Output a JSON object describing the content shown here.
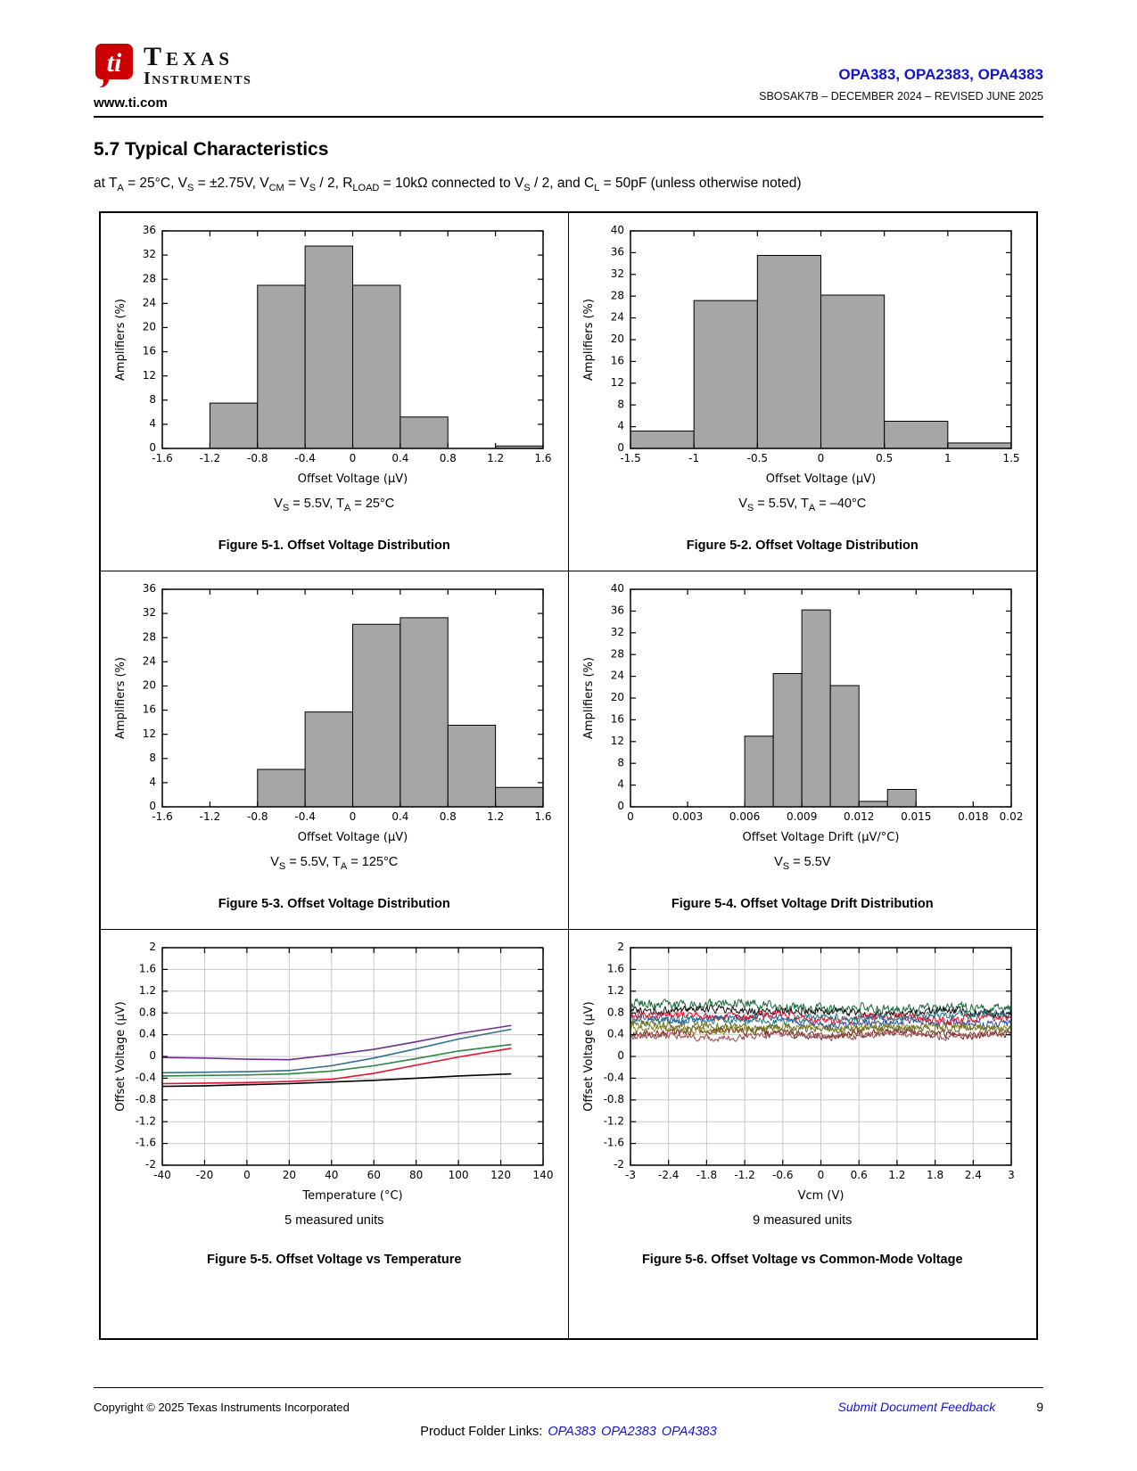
{
  "theme": {
    "brand_red": "#cc0000",
    "link_blue": "#1414cc",
    "bar_fill": "#a6a6a6",
    "grid_gray": "#c9c9c9"
  },
  "header": {
    "website": "www.ti.com",
    "logo_line1": "Texas",
    "logo_line2": "Instruments",
    "part_numbers": "OPA383, OPA2383, OPA4383",
    "doc_revision": "SBOSAK7B – DECEMBER 2024 – REVISED JUNE 2025"
  },
  "section": {
    "title": "5.7 Typical Characteristics",
    "conditions_html": "at T<sub>A</sub> = 25°C, V<sub>S</sub> = ±2.75V, V<sub>CM</sub> = V<sub>S</sub> / 2, R<sub>LOAD</sub> = 10kΩ connected to V<sub>S</sub> / 2, and C<sub>L</sub> = 50pF (unless otherwise noted)",
    "measured_units_fig5": "5 measured units",
    "measured_units_fig6": "9 measured units"
  },
  "chart_data": [
    {
      "name": "figure-5-1",
      "type": "bar",
      "title": "Figure 5-1. Offset Voltage Distribution",
      "condition_html": "V<sub>S</sub> = 5.5V, T<sub>A</sub> = 25°C",
      "xlabel": "Offset Voltage (μV)",
      "ylabel": "Amplifiers (%)",
      "xlim": [
        -1.6,
        1.6
      ],
      "ylim": [
        0,
        36
      ],
      "xticks": [
        -1.6,
        -1.2,
        -0.8,
        -0.4,
        0,
        0.4,
        0.8,
        1.2,
        1.6
      ],
      "yticks": [
        0,
        4,
        8,
        12,
        16,
        20,
        24,
        28,
        32,
        36
      ],
      "grid": false,
      "bars": [
        [
          -1.2,
          -0.8,
          7.5
        ],
        [
          -0.8,
          -0.4,
          27
        ],
        [
          -0.4,
          0,
          33.5
        ],
        [
          0,
          0.4,
          27
        ],
        [
          0.4,
          0.8,
          5.2
        ],
        [
          1.2,
          1.6,
          0.4
        ]
      ]
    },
    {
      "name": "figure-5-2",
      "type": "bar",
      "title": "Figure 5-2. Offset Voltage Distribution",
      "condition_html": "V<sub>S</sub> = 5.5V, T<sub>A</sub> = –40°C",
      "xlabel": "Offset Voltage (μV)",
      "ylabel": "Amplifiers (%)",
      "xlim": [
        -1.5,
        1.5
      ],
      "ylim": [
        0,
        40
      ],
      "xticks": [
        -1.5,
        -1,
        -0.5,
        0,
        0.5,
        1,
        1.5
      ],
      "yticks": [
        0,
        4,
        8,
        12,
        16,
        20,
        24,
        28,
        32,
        36,
        40
      ],
      "grid": false,
      "bars": [
        [
          -1.5,
          -1,
          3.2
        ],
        [
          -1,
          -0.5,
          27.2
        ],
        [
          -0.5,
          0,
          35.5
        ],
        [
          0,
          0.5,
          28.2
        ],
        [
          0.5,
          1,
          5
        ],
        [
          1,
          1.5,
          1
        ]
      ]
    },
    {
      "name": "figure-5-3",
      "type": "bar",
      "title": "Figure 5-3. Offset Voltage Distribution",
      "condition_html": "V<sub>S</sub> = 5.5V, T<sub>A</sub> = 125°C",
      "xlabel": "Offset Voltage (μV)",
      "ylabel": "Amplifiers (%)",
      "xlim": [
        -1.6,
        1.6
      ],
      "ylim": [
        0,
        36
      ],
      "xticks": [
        -1.6,
        -1.2,
        -0.8,
        -0.4,
        0,
        0.4,
        0.8,
        1.2,
        1.6
      ],
      "yticks": [
        0,
        4,
        8,
        12,
        16,
        20,
        24,
        28,
        32,
        36
      ],
      "grid": false,
      "bars": [
        [
          -0.8,
          -0.4,
          6.2
        ],
        [
          -0.4,
          0,
          15.7
        ],
        [
          0,
          0.4,
          30.2
        ],
        [
          0.4,
          0.8,
          31.3
        ],
        [
          0.8,
          1.2,
          13.5
        ],
        [
          1.2,
          1.6,
          3.2
        ]
      ]
    },
    {
      "name": "figure-5-4",
      "type": "bar",
      "title": "Figure 5-4. Offset Voltage Drift Distribution",
      "condition_html": "V<sub>S</sub> = 5.5V",
      "xlabel": "Offset Voltage Drift (μV/°C)",
      "ylabel": "Amplifiers (%)",
      "xlim": [
        0,
        0.02
      ],
      "ylim": [
        0,
        40
      ],
      "xticks": [
        0,
        0.003,
        0.006,
        0.009,
        0.012,
        0.015,
        0.018,
        0.02
      ],
      "yticks": [
        0,
        4,
        8,
        12,
        16,
        20,
        24,
        28,
        32,
        36,
        40
      ],
      "grid": false,
      "bars": [
        [
          0.006,
          0.0075,
          13
        ],
        [
          0.0075,
          0.009,
          24.5
        ],
        [
          0.009,
          0.0105,
          36.2
        ],
        [
          0.0105,
          0.012,
          22.3
        ],
        [
          0.012,
          0.0135,
          1
        ],
        [
          0.0135,
          0.015,
          3.2
        ]
      ]
    },
    {
      "name": "figure-5-5",
      "type": "line",
      "title": "Figure 5-5. Offset Voltage vs Temperature",
      "condition_html": "5 measured units",
      "xlabel": "Temperature (°C)",
      "ylabel": "Offset Voltage (μV)",
      "xlim": [
        -40,
        140
      ],
      "ylim": [
        -2,
        2
      ],
      "xticks": [
        -40,
        -20,
        0,
        20,
        40,
        60,
        80,
        100,
        120,
        140
      ],
      "yticks": [
        -2,
        -1.6,
        -1.2,
        -0.8,
        -0.4,
        0,
        0.4,
        0.8,
        1.2,
        1.6,
        2
      ],
      "grid": true,
      "x": [
        -40,
        -20,
        0,
        20,
        40,
        60,
        80,
        100,
        125
      ],
      "series": [
        {
          "name": "unit-1",
          "color": "#70308f",
          "values": [
            -0.02,
            -0.03,
            -0.05,
            -0.06,
            0.03,
            0.13,
            0.27,
            0.42,
            0.57
          ]
        },
        {
          "name": "unit-2",
          "color": "#31708f",
          "values": [
            -0.3,
            -0.29,
            -0.28,
            -0.26,
            -0.17,
            -0.03,
            0.14,
            0.32,
            0.5
          ]
        },
        {
          "name": "unit-3",
          "color": "#2e8540",
          "values": [
            -0.36,
            -0.35,
            -0.34,
            -0.32,
            -0.27,
            -0.17,
            -0.04,
            0.1,
            0.22
          ]
        },
        {
          "name": "unit-4",
          "color": "#e8112d",
          "values": [
            -0.5,
            -0.49,
            -0.48,
            -0.46,
            -0.42,
            -0.31,
            -0.16,
            -0.01,
            0.15
          ]
        },
        {
          "name": "unit-5",
          "color": "#000000",
          "values": [
            -0.55,
            -0.54,
            -0.52,
            -0.5,
            -0.47,
            -0.44,
            -0.4,
            -0.36,
            -0.32
          ]
        }
      ]
    },
    {
      "name": "figure-5-6",
      "type": "noisy",
      "title": "Figure 5-6. Offset Voltage vs Common-Mode Voltage",
      "condition_html": "9 measured units",
      "xlabel": "Vcm (V)",
      "ylabel": "Offset Voltage (μV)",
      "xlim": [
        -3,
        3
      ],
      "ylim": [
        -2,
        2
      ],
      "xticks": [
        -3,
        -2.4,
        -1.8,
        -1.2,
        -0.6,
        0,
        0.6,
        1.2,
        1.8,
        2.4,
        3
      ],
      "yticks": [
        -2,
        -1.6,
        -1.2,
        -0.8,
        -0.4,
        0,
        0.4,
        0.8,
        1.2,
        1.6,
        2
      ],
      "grid": true,
      "points": 460,
      "series": [
        {
          "name": "unit-1",
          "color": "#1b6b3a",
          "left": 0.95,
          "right": 0.88,
          "amp": 0.14
        },
        {
          "name": "unit-2",
          "color": "#7b1f1f",
          "left": 0.45,
          "right": 0.42,
          "amp": 0.11
        },
        {
          "name": "unit-3",
          "color": "#8a8a2a",
          "left": 0.5,
          "right": 0.55,
          "amp": 0.11
        },
        {
          "name": "unit-4",
          "color": "#2b4fa0",
          "left": 0.7,
          "right": 0.62,
          "amp": 0.11
        },
        {
          "name": "unit-5",
          "color": "#101010",
          "left": 0.85,
          "right": 0.8,
          "amp": 0.11
        },
        {
          "name": "unit-6",
          "color": "#e8112d",
          "left": 0.74,
          "right": 0.7,
          "amp": 0.12
        },
        {
          "name": "unit-7",
          "color": "#1a7a8a",
          "left": 0.64,
          "right": 0.74,
          "amp": 0.11
        },
        {
          "name": "unit-8",
          "color": "#9a4a4a",
          "left": 0.36,
          "right": 0.4,
          "amp": 0.1
        },
        {
          "name": "unit-9",
          "color": "#6e6e20",
          "left": 0.56,
          "right": 0.5,
          "amp": 0.11
        }
      ]
    }
  ],
  "footer": {
    "copyright": "Copyright © 2025 Texas Instruments Incorporated",
    "feedback": "Submit Document Feedback",
    "page_number": "9",
    "product_links_label": "Product Folder Links:",
    "product_links": [
      "OPA383",
      "OPA2383",
      "OPA4383"
    ]
  }
}
